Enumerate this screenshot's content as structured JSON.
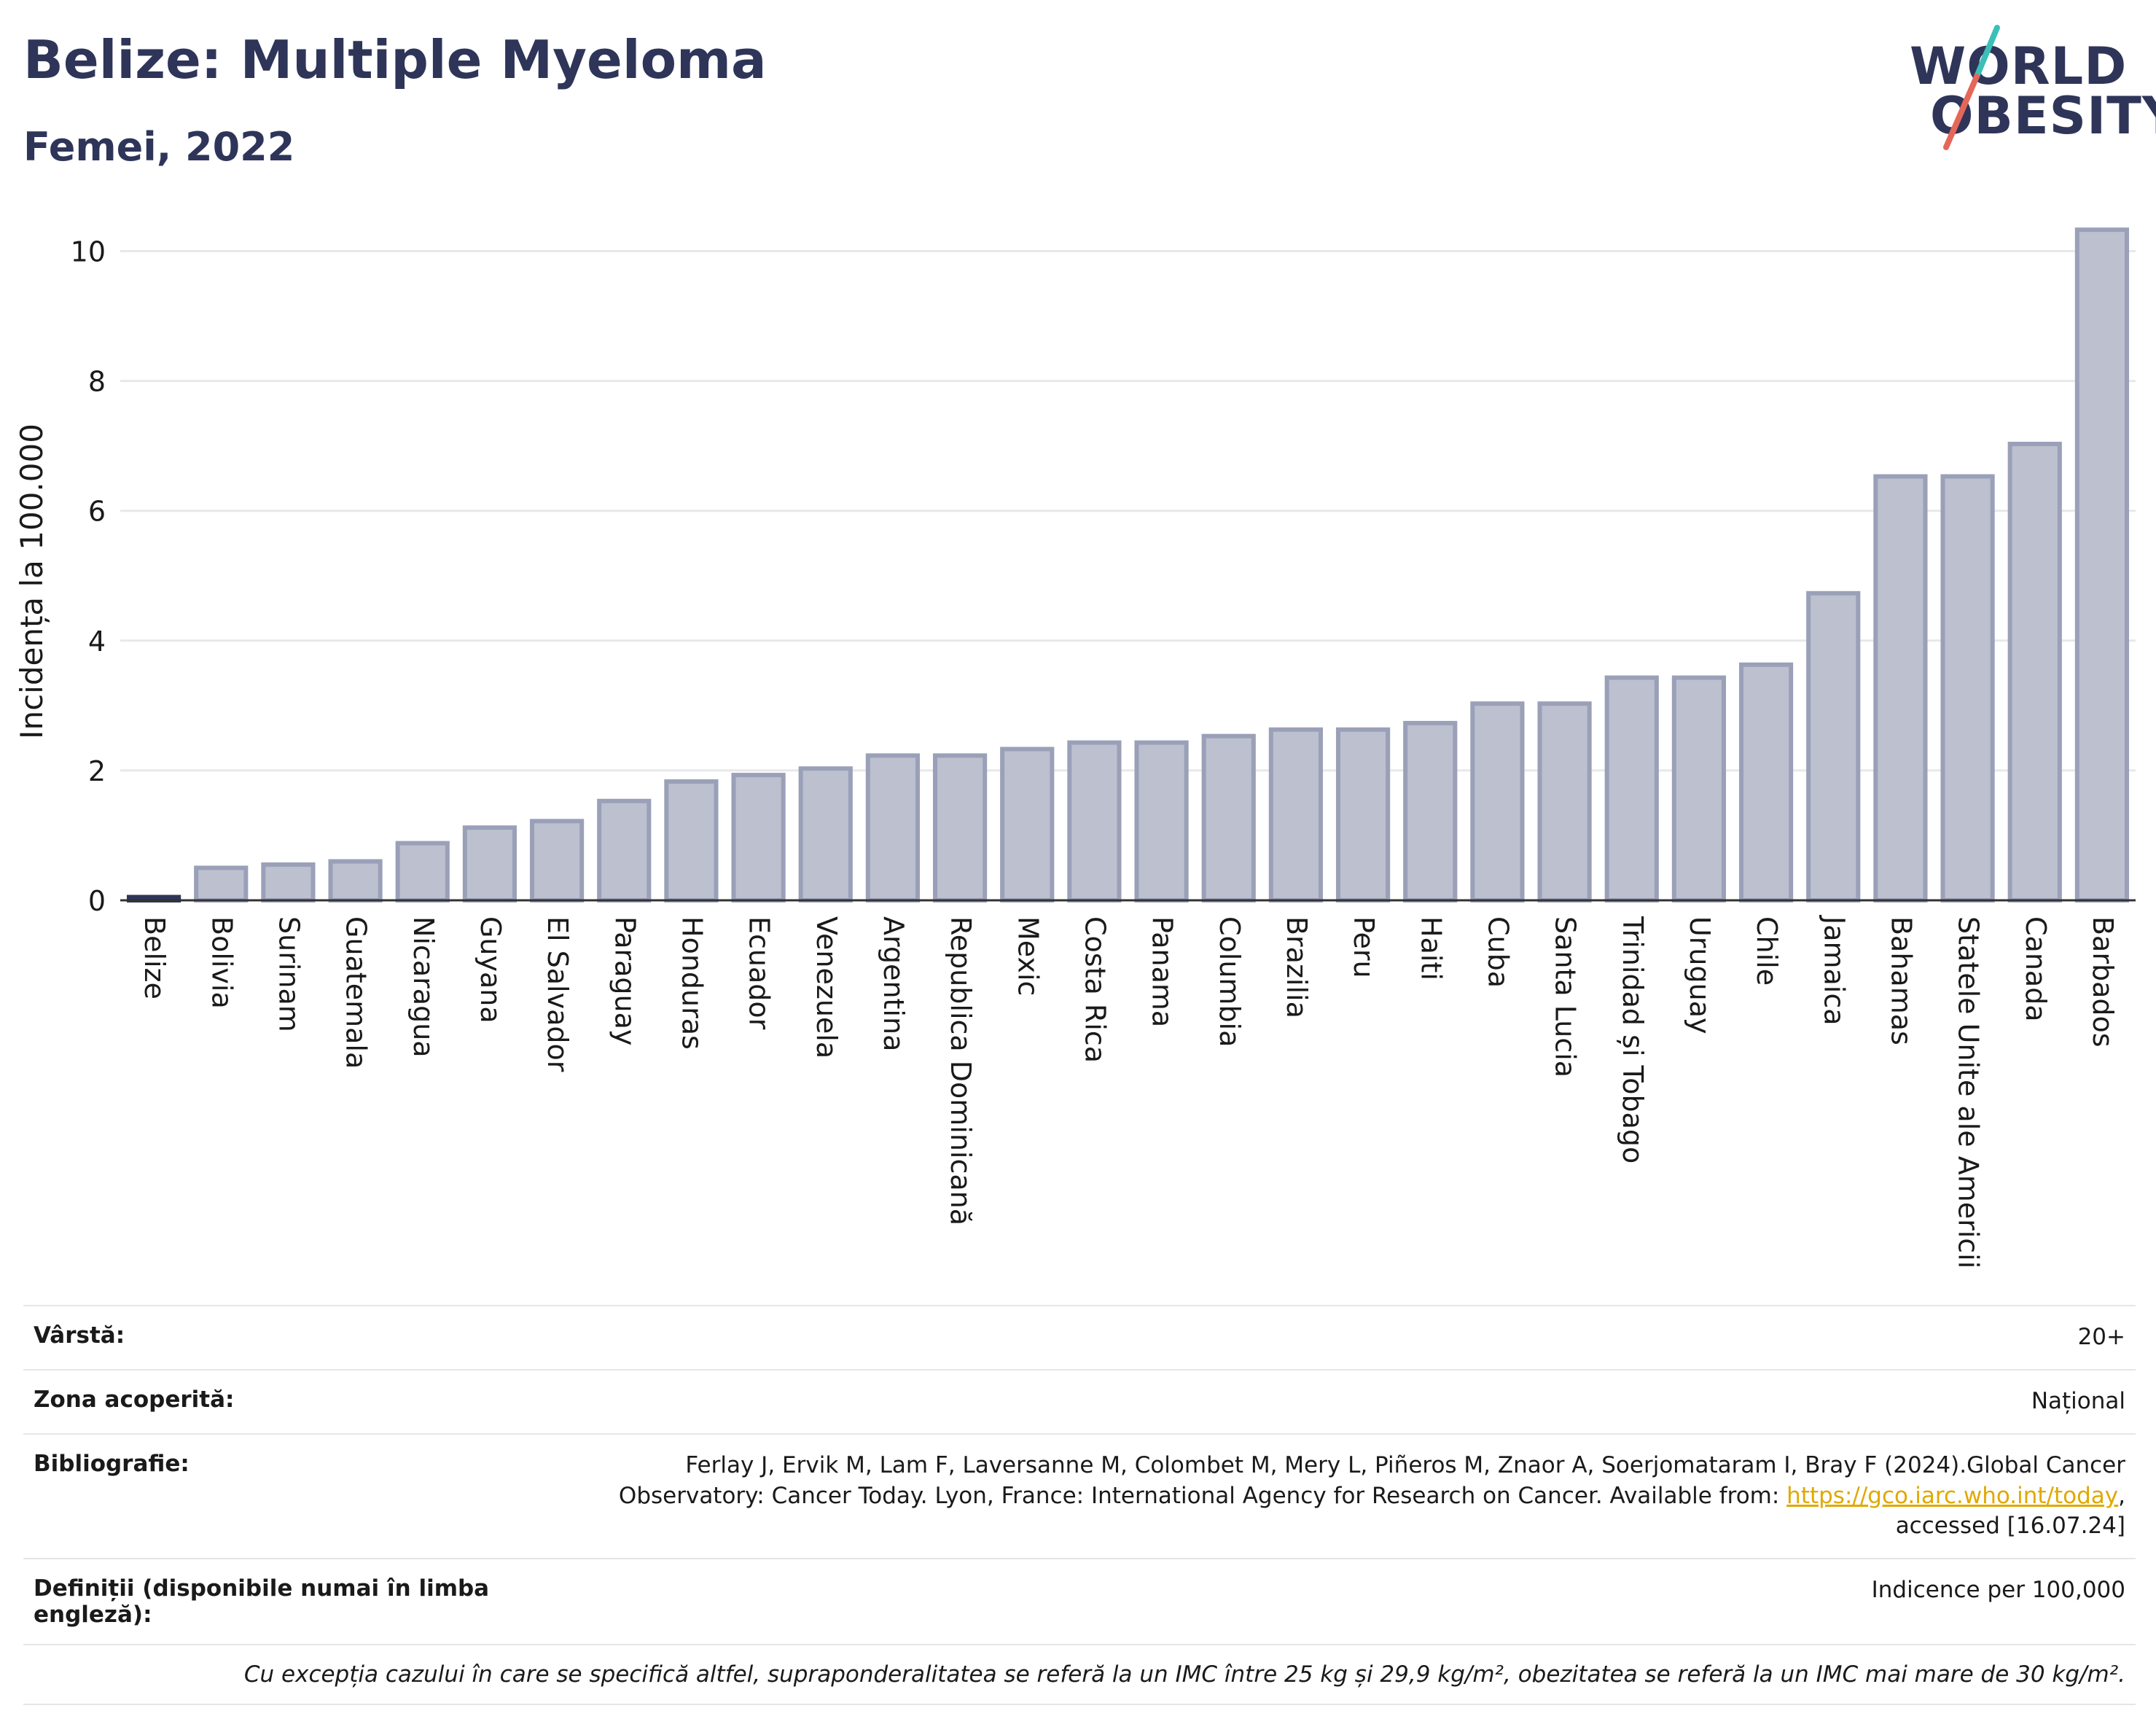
{
  "header": {
    "title": "Belize: Multiple Myeloma",
    "subtitle": "Femei, 2022",
    "logo_line1": "WORLD",
    "logo_line2": "OBESITY"
  },
  "colors": {
    "title": "#2e3559",
    "bar_fill": "#bcc0cf",
    "bar_stroke": "#9aa0b8",
    "highlight": "#2e3559",
    "logo_teal": "#3bbfb7",
    "logo_red": "#e5675a",
    "link": "#e0a800"
  },
  "chart_data": {
    "type": "bar",
    "ylabel": "Incidența la 100.000",
    "ylim": [
      0,
      10.5
    ],
    "yticks": [
      0,
      2,
      4,
      6,
      8,
      10
    ],
    "grid": true,
    "highlight_category": "Belize",
    "categories": [
      "Belize",
      "Bolivia",
      "Surinam",
      "Guatemala",
      "Nicaragua",
      "Guyana",
      "El Salvador",
      "Paraguay",
      "Honduras",
      "Ecuador",
      "Venezuela",
      "Argentina",
      "Republica Dominicană",
      "Mexic",
      "Costa Rica",
      "Panama",
      "Columbia",
      "Brazilia",
      "Peru",
      "Haiti",
      "Cuba",
      "Santa Lucia",
      "Trinidad și Tobago",
      "Uruguay",
      "Chile",
      "Jamaica",
      "Bahamas",
      "Statele Unite ale Americii",
      "Canada",
      "Barbados"
    ],
    "values": [
      0.05,
      0.5,
      0.55,
      0.6,
      0.88,
      1.12,
      1.22,
      1.53,
      1.83,
      1.93,
      2.03,
      2.23,
      2.23,
      2.33,
      2.43,
      2.43,
      2.53,
      2.63,
      2.63,
      2.73,
      3.03,
      3.03,
      3.43,
      3.43,
      3.63,
      4.73,
      6.53,
      6.53,
      7.03,
      10.33
    ]
  },
  "meta": {
    "age_label": "Vârstă:",
    "age_value": "20+",
    "coverage_label": "Zona acoperită:",
    "coverage_value": "Național",
    "biblio_label": "Bibliografie:",
    "biblio_text1": "Ferlay J, Ervik M, Lam F, Laversanne M, Colombet M, Mery L, Piñeros M, Znaor A, Soerjomataram I, Bray F (2024).Global Cancer",
    "biblio_text2": "Observatory: Cancer Today. Lyon, France: International Agency for Research on Cancer. Available from: ",
    "biblio_link": "https://gco.iarc.who.int/today",
    "biblio_text3": ",",
    "biblio_text4": "accessed [16.07.24]",
    "definitions_label": "Definiții (disponibile numai în limba engleză):",
    "definitions_value": "Indicence per 100,000",
    "note": "Cu excepția cazului în care se specifică altfel, supraponderalitatea se referă la un IMC între 25 kg și 29,9 kg/m², obezitatea se referă la un IMC mai mare de 30 kg/m²."
  }
}
